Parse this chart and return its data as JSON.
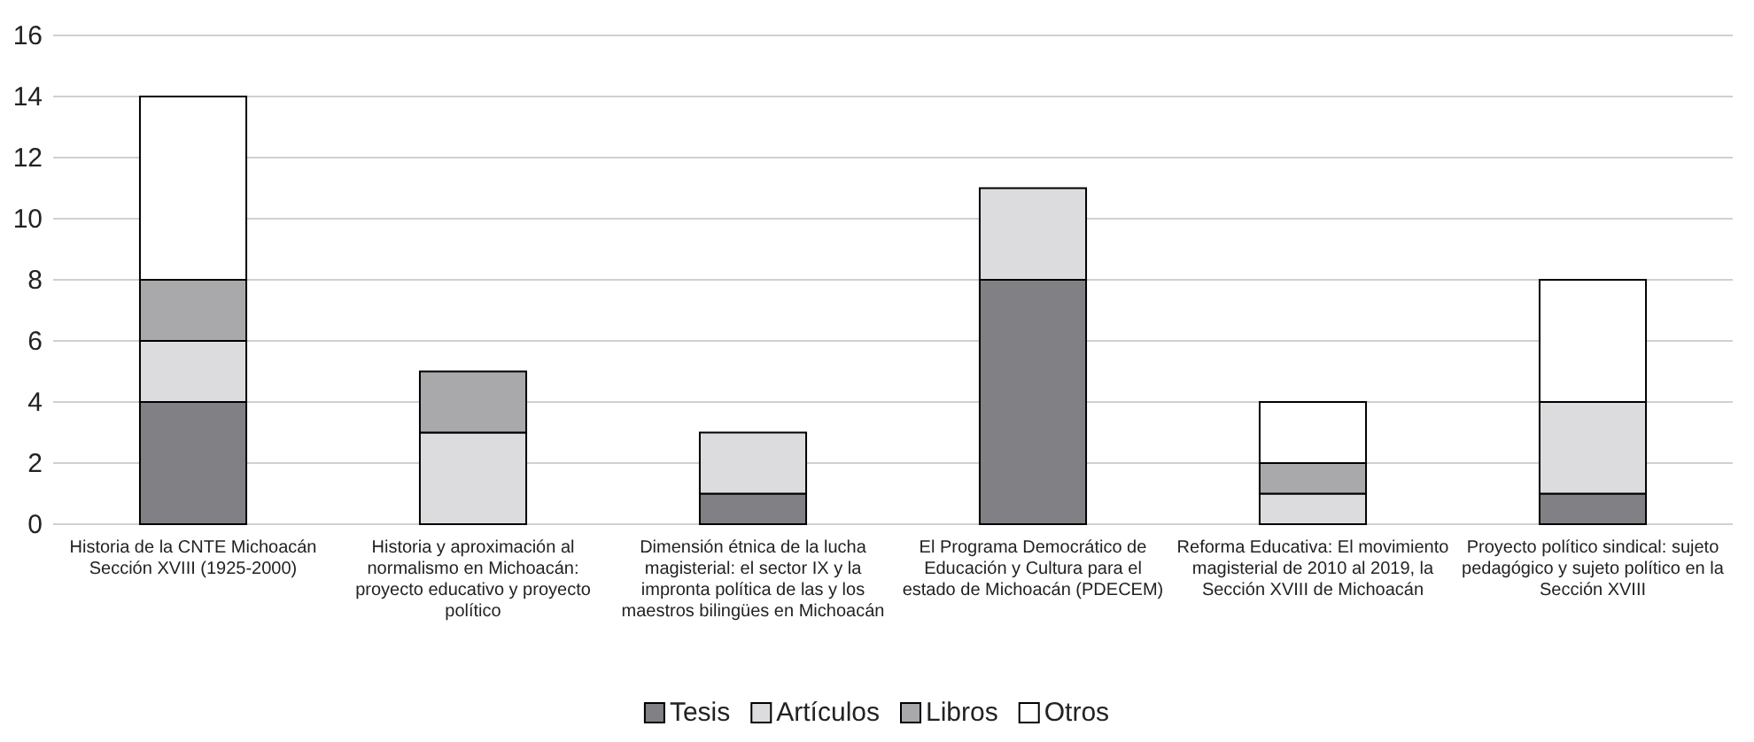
{
  "chart_data": {
    "type": "bar",
    "stacked": true,
    "categories": [
      "Historia de la CNTE Michoacán Sección XVIII (1925-2000)",
      "Historia y aproximación al normalismo en Michoacán: proyecto educativo y proyecto político",
      "Dimensión étnica de la lucha magisterial: el sector IX y la impronta política de las y los maestros bilingües en Michoacán",
      "El Programa Democrático de Educación y Cultura para el estado de Michoacán (PDECEM)",
      "Reforma Educativa: El movimiento magisterial de 2010 al 2019, la Sección XVIII de Michoacán",
      "Proyecto político sindical: sujeto pedagógico y sujeto político en la Sección XVIII"
    ],
    "series": [
      {
        "name": "Tesis",
        "color": "#808085",
        "values": [
          4,
          0,
          1,
          8,
          0,
          1
        ]
      },
      {
        "name": "Artículos",
        "color": "#dcdcde",
        "values": [
          2,
          3,
          2,
          3,
          1,
          3
        ]
      },
      {
        "name": "Libros",
        "color": "#a9a9ab",
        "values": [
          2,
          2,
          0,
          0,
          1,
          0
        ]
      },
      {
        "name": "Otros",
        "color": "#ffffff",
        "values": [
          6,
          0,
          0,
          0,
          2,
          4
        ]
      }
    ],
    "ylim": [
      0,
      16
    ],
    "yticks": [
      0,
      2,
      4,
      6,
      8,
      10,
      12,
      14,
      16
    ],
    "grid": "y",
    "legend": "bottom"
  }
}
